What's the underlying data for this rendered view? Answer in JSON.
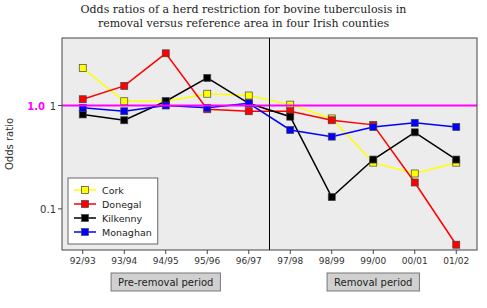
{
  "chart_data": {
    "type": "line",
    "title": "Odds ratios of a herd restriction for bovine tuberculosis in\nremoval versus reference area in four Irish counties",
    "y_label": "Odds ratio",
    "categories": [
      "92/93",
      "93/94",
      "94/95",
      "95/96",
      "96/97",
      "97/98",
      "98/99",
      "99/00",
      "00/01",
      "01/02"
    ],
    "series": [
      {
        "name": "Cork",
        "color": "#ffff00",
        "marker": "square",
        "values": [
          2.3,
          1.1,
          1.1,
          1.3,
          1.25,
          1.02,
          0.75,
          0.28,
          0.22,
          0.28
        ]
      },
      {
        "name": "Donegal",
        "color": "#ff0000",
        "marker": "square",
        "values": [
          1.15,
          1.55,
          3.2,
          0.92,
          0.88,
          0.88,
          0.72,
          0.65,
          0.18,
          0.045
        ]
      },
      {
        "name": "Kilkenny",
        "color": "#000000",
        "marker": "square",
        "values": [
          0.82,
          0.72,
          1.1,
          1.85,
          1.05,
          0.78,
          0.13,
          0.3,
          0.55,
          0.3
        ]
      },
      {
        "name": "Monaghan",
        "color": "#0000ff",
        "marker": "square",
        "values": [
          0.95,
          0.88,
          1.0,
          0.95,
          1.05,
          0.58,
          0.5,
          0.62,
          0.68,
          0.62
        ]
      }
    ],
    "log": "y",
    "ylim": [
      0.04,
      4.5
    ],
    "yticks": [
      0.1,
      1
    ],
    "grid": false,
    "legend": "lower left",
    "reference_line": {
      "y": 1.0,
      "label": "1.0",
      "color": "#ff00ff"
    },
    "periods": [
      {
        "label": "Pre-removal period",
        "from": "92/93",
        "to": "96/97"
      },
      {
        "label": "Removal period",
        "from": "97/98",
        "to": "01/02"
      }
    ]
  }
}
